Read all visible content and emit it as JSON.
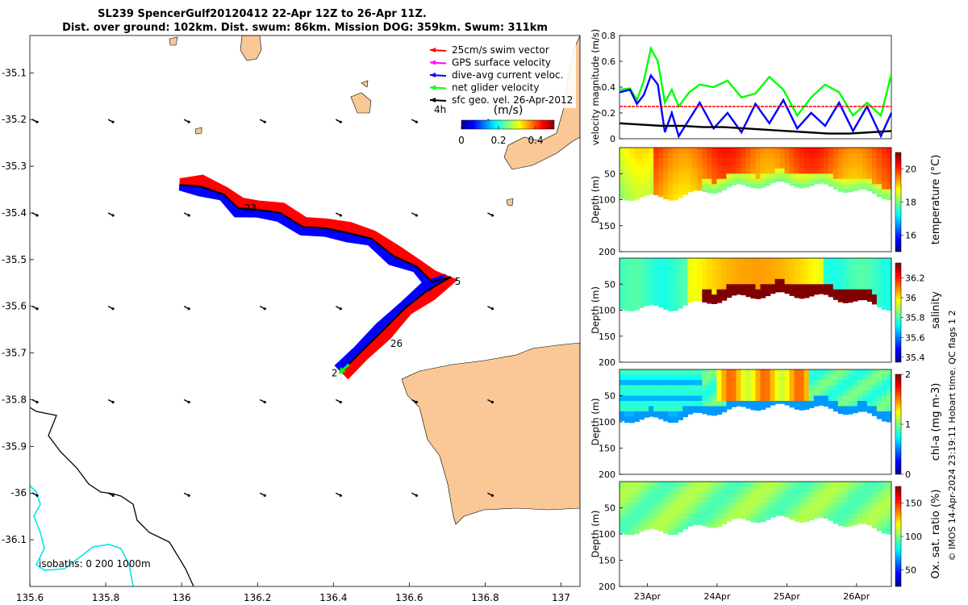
{
  "figure": {
    "title_line1": "SL239 SpencerGulf20120412 22-Apr 12Z to 26-Apr 11Z.",
    "title_line2": "Dist. over ground: 102km. Dist. swum: 86km. Mission DOG: 359km. Swum: 311km",
    "credit": "© IMOS 14-Apr-2024 23:19:11 Hobart time. QC flags 1  2"
  },
  "colors": {
    "land": "#f9c896",
    "swim": "#ff0000",
    "gps": "#ff00ff",
    "dive_avg": "#0000ff",
    "net": "#00ff00",
    "geo": "#000000",
    "isobath_200": "#00e5ee",
    "isobath_0": "#000000"
  },
  "chart_data": [
    {
      "type": "map",
      "name": "glider-track-map",
      "xlim": [
        135.6,
        137.05
      ],
      "ylim": [
        -36.2,
        -35.02
      ],
      "xticks": [
        "135.6",
        "135.8",
        "136",
        "136.2",
        "136.4",
        "136.6",
        "136.8",
        "137"
      ],
      "yticks": [
        "-35.1",
        "-35.2",
        "-35.3",
        "-35.4",
        "-35.5",
        "-35.6",
        "-35.7",
        "-35.8",
        "-35.9",
        "-36",
        "-36.1"
      ],
      "legend": [
        {
          "label": "25cm/s swim vector",
          "color": "#ff0000"
        },
        {
          "label": "GPS surface velocity",
          "color": "#ff00ff"
        },
        {
          "label": "dive-avg current veloc.",
          "color": "#0000ff"
        },
        {
          "label": "net glider velocity",
          "color": "#00ff00"
        },
        {
          "label": "sfc geo. vel. 26-Apr-2012",
          "color": "#000000"
        }
      ],
      "legend_placement": "top-right",
      "colorbar": {
        "title": "(m/s)",
        "prefix": "4h",
        "ticks": [
          "0",
          "0.2",
          "0.4"
        ],
        "range": [
          0,
          0.5
        ]
      },
      "track": [
        {
          "lon": 135.995,
          "lat": -35.34
        },
        {
          "lon": 136.05,
          "lat": -35.343
        },
        {
          "lon": 136.11,
          "lat": -35.36
        },
        {
          "lon": 136.15,
          "lat": -35.39
        },
        {
          "lon": 136.2,
          "lat": -35.393
        },
        {
          "lon": 136.26,
          "lat": -35.4
        },
        {
          "lon": 136.32,
          "lat": -35.43
        },
        {
          "lon": 136.38,
          "lat": -35.433
        },
        {
          "lon": 136.44,
          "lat": -35.443
        },
        {
          "lon": 136.5,
          "lat": -35.455
        },
        {
          "lon": 136.56,
          "lat": -35.493
        },
        {
          "lon": 136.62,
          "lat": -35.515
        },
        {
          "lon": 136.66,
          "lat": -35.548
        },
        {
          "lon": 136.71,
          "lat": -35.537
        },
        {
          "lon": 136.65,
          "lat": -35.565
        },
        {
          "lon": 136.59,
          "lat": -35.603
        },
        {
          "lon": 136.53,
          "lat": -35.652
        },
        {
          "lon": 136.47,
          "lat": -35.7
        },
        {
          "lon": 136.42,
          "lat": -35.74
        }
      ],
      "day_labels": [
        {
          "text": "23",
          "lon": 136.165,
          "lat": -35.39
        },
        {
          "text": "5",
          "lon": 136.72,
          "lat": -35.547
        },
        {
          "text": "26",
          "lon": 136.55,
          "lat": -35.68
        },
        {
          "text": "2",
          "lon": 136.395,
          "lat": -35.743
        }
      ],
      "annotation": "isobaths: 0   200  1000m"
    },
    {
      "type": "line",
      "name": "velocity-magnitude",
      "ylabel": "velocity magnitude (m/s)",
      "ylim": [
        0,
        0.8
      ],
      "yticks": [
        "0",
        "0.2",
        "0.4",
        "0.6",
        "0.8"
      ],
      "x_range_days": [
        22.6,
        26.5
      ],
      "series": [
        {
          "color": "#00ff00",
          "x": [
            22.6,
            22.75,
            22.85,
            22.95,
            23.05,
            23.15,
            23.25,
            23.35,
            23.45,
            23.6,
            23.75,
            23.95,
            24.15,
            24.35,
            24.55,
            24.75,
            24.95,
            25.15,
            25.35,
            25.55,
            25.75,
            25.95,
            26.15,
            26.35,
            26.5
          ],
          "values": [
            0.38,
            0.39,
            0.3,
            0.45,
            0.7,
            0.6,
            0.28,
            0.38,
            0.25,
            0.36,
            0.42,
            0.4,
            0.45,
            0.32,
            0.35,
            0.48,
            0.38,
            0.18,
            0.32,
            0.42,
            0.36,
            0.18,
            0.28,
            0.18,
            0.5
          ]
        },
        {
          "color": "#0000ff",
          "x": [
            22.6,
            22.75,
            22.85,
            22.95,
            23.05,
            23.15,
            23.25,
            23.35,
            23.45,
            23.6,
            23.75,
            23.95,
            24.15,
            24.35,
            24.55,
            24.75,
            24.95,
            25.15,
            25.35,
            25.55,
            25.75,
            25.95,
            26.15,
            26.35,
            26.5
          ],
          "values": [
            0.36,
            0.38,
            0.27,
            0.34,
            0.49,
            0.42,
            0.05,
            0.2,
            0.02,
            0.15,
            0.28,
            0.08,
            0.2,
            0.05,
            0.27,
            0.12,
            0.3,
            0.08,
            0.2,
            0.1,
            0.28,
            0.06,
            0.25,
            0.02,
            0.2
          ]
        },
        {
          "color": "#ff0000",
          "x": [
            22.6,
            26.5
          ],
          "values": [
            0.25,
            0.25
          ]
        },
        {
          "color": "#000000",
          "x": [
            22.6,
            22.9,
            23.2,
            23.5,
            23.8,
            24.1,
            24.4,
            24.7,
            25.0,
            25.3,
            25.6,
            25.9,
            26.2,
            26.5
          ],
          "values": [
            0.12,
            0.11,
            0.1,
            0.1,
            0.09,
            0.09,
            0.08,
            0.07,
            0.06,
            0.05,
            0.04,
            0.04,
            0.05,
            0.06
          ]
        }
      ]
    },
    {
      "type": "heatmap",
      "name": "temperature-section",
      "ylabel": "Depth (m)",
      "colorbar_label": "temperature (°C)",
      "ylim": [
        200,
        0
      ],
      "yticks": [
        "50",
        "100",
        "150",
        "200"
      ],
      "clim": [
        15,
        21
      ],
      "cticks": [
        "16",
        "18",
        "20"
      ]
    },
    {
      "type": "heatmap",
      "name": "salinity-section",
      "ylabel": "Depth (m)",
      "colorbar_label": "salinity",
      "ylim": [
        200,
        0
      ],
      "yticks": [
        "50",
        "100",
        "150",
        "200"
      ],
      "clim": [
        35.35,
        36.35
      ],
      "cticks": [
        "35.4",
        "35.6",
        "35.8",
        "36",
        "36.2"
      ]
    },
    {
      "type": "heatmap",
      "name": "chla-section",
      "ylabel": "Depth (m)",
      "colorbar_label": "chl-a (mg m-3)",
      "ylim": [
        200,
        0
      ],
      "yticks": [
        "50",
        "100",
        "150",
        "200"
      ],
      "clim": [
        0,
        2
      ],
      "cticks": [
        "0",
        "1",
        "2"
      ]
    },
    {
      "type": "heatmap",
      "name": "oxygen-section",
      "ylabel": "Depth (m)",
      "colorbar_label": "Ox. sat. ratio (%)",
      "ylim": [
        200,
        0
      ],
      "yticks": [
        "50",
        "100",
        "150",
        "200"
      ],
      "clim": [
        25,
        175
      ],
      "cticks": [
        "50",
        "100",
        "150"
      ],
      "xticks": [
        "23Apr",
        "24Apr",
        "25Apr",
        "26Apr"
      ]
    }
  ]
}
